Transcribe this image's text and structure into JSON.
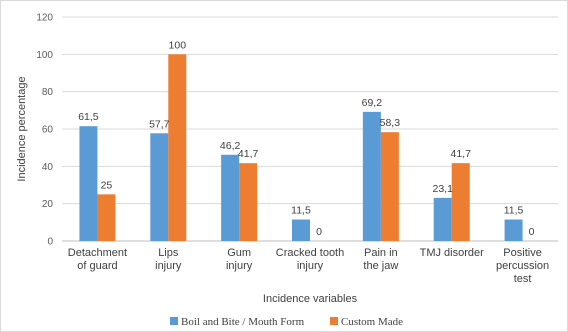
{
  "chart_data": {
    "type": "bar",
    "title": "",
    "xlabel": "Incidence variables",
    "ylabel": "Incidence percentage",
    "ylim": [
      0,
      120
    ],
    "yticks": [
      0,
      20,
      40,
      60,
      80,
      100,
      120
    ],
    "grid": true,
    "legend_position": "bottom",
    "categories": [
      [
        "Detachment",
        "of guard"
      ],
      [
        "Lips",
        "injury"
      ],
      [
        "Gum",
        "injury"
      ],
      [
        "Cracked tooth",
        "injury"
      ],
      [
        "Pain in",
        "the jaw"
      ],
      [
        "TMJ disorder"
      ],
      [
        "Positive",
        "percussion",
        "test"
      ]
    ],
    "series": [
      {
        "name": "Boil and Bite / Mouth Form",
        "color": "#5b9bd5",
        "values": [
          61.5,
          57.7,
          46.2,
          11.5,
          69.2,
          23.1,
          11.5
        ],
        "labels": [
          "61,5",
          "57,7",
          "46,2",
          "11,5",
          "69,2",
          "23,1",
          "11,5"
        ]
      },
      {
        "name": "Custom Made",
        "color": "#ed7d31",
        "values": [
          25,
          100,
          41.7,
          0,
          58.3,
          41.7,
          0
        ],
        "labels": [
          "25",
          "100",
          "41,7",
          "0",
          "58,3",
          "41,7",
          "0"
        ]
      }
    ]
  }
}
